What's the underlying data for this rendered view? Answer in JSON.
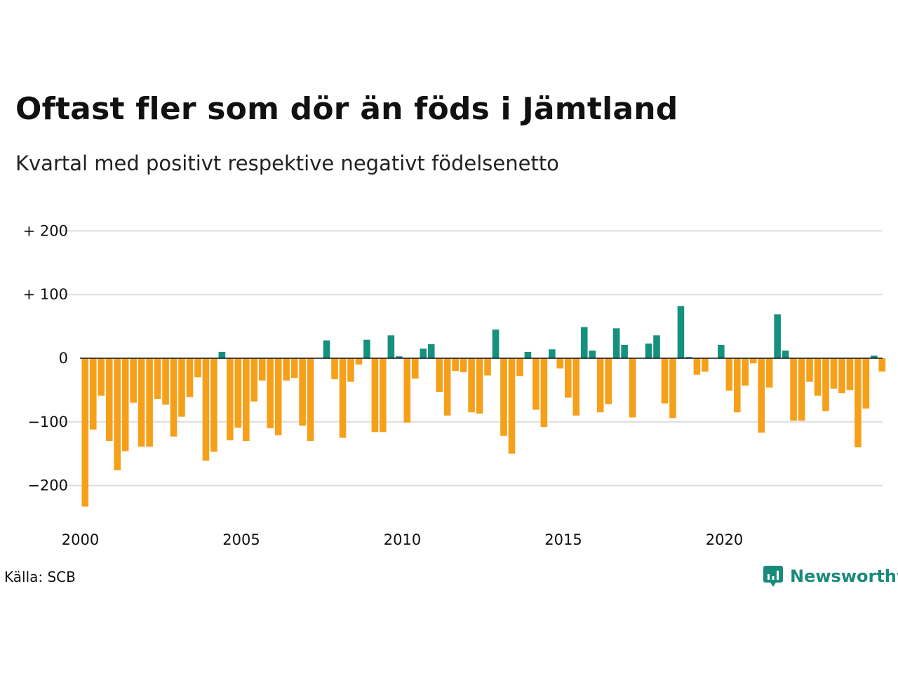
{
  "title": "Oftast fler som dör än föds i Jämtland",
  "subtitle": "Kvartal med positivt respektive negativt födelsenetto",
  "source": "Källa: SCB",
  "logo_text": "Newsworthy",
  "logo_icon": "bar-chart-speech-bubble-icon",
  "colors": {
    "positive": "#16917f",
    "negative": "#f6a01a",
    "grid": "#dddddd",
    "axis": "#111111",
    "logo": "#1a8a7d"
  },
  "chart_data": {
    "type": "bar",
    "xlabel": "",
    "ylabel": "",
    "ylim": [
      -230,
      215
    ],
    "grid": true,
    "yticks": [
      {
        "value": 200,
        "label": "+ 200"
      },
      {
        "value": 100,
        "label": "+ 100"
      },
      {
        "value": 0,
        "label": "0"
      },
      {
        "value": -100,
        "label": "−100"
      },
      {
        "value": -200,
        "label": "−200"
      }
    ],
    "xticks": [
      {
        "year": 2000,
        "label": "2000"
      },
      {
        "year": 2005,
        "label": "2005"
      },
      {
        "year": 2010,
        "label": "2010"
      },
      {
        "year": 2015,
        "label": "2015"
      },
      {
        "year": 2020,
        "label": "2020"
      }
    ],
    "start_year": 2000,
    "start_quarter": 1,
    "values": [
      -233,
      -112,
      -59,
      -130,
      -176,
      -146,
      -70,
      -139,
      -139,
      -64,
      -73,
      -123,
      -92,
      -61,
      -30,
      -161,
      -147,
      10,
      -129,
      -109,
      -130,
      -68,
      -35,
      -110,
      -121,
      -35,
      -31,
      -106,
      -130,
      0,
      28,
      -33,
      -125,
      -37,
      -10,
      29,
      -116,
      -116,
      36,
      3,
      -101,
      -32,
      15,
      22,
      -53,
      -90,
      -20,
      -22,
      -85,
      -87,
      -27,
      45,
      -122,
      -150,
      -28,
      10,
      -81,
      -108,
      14,
      -16,
      -62,
      -90,
      49,
      12,
      -85,
      -72,
      47,
      21,
      -93,
      0,
      23,
      36,
      -71,
      -94,
      82,
      2,
      -26,
      -21,
      0,
      21,
      -51,
      -85,
      -43,
      -8,
      -117,
      -46,
      69,
      12,
      -98,
      -98,
      -37,
      -59,
      -83,
      -48,
      -55,
      -50,
      -140,
      -79,
      4,
      -21
    ]
  }
}
